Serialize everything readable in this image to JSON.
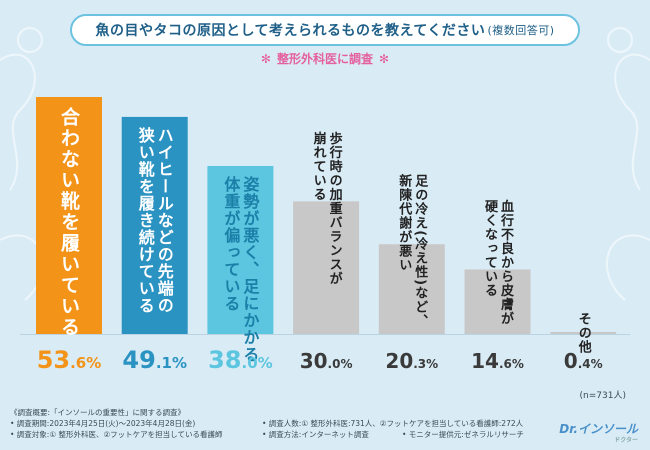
{
  "header": {
    "title": "魚の目やタコの原因として考えられるものを教えてください",
    "title_suffix": "(複数回答可)",
    "subtitle": "整形外科医に調査",
    "subtitle_star": "✻"
  },
  "chart_data": {
    "type": "bar",
    "title": "魚の目やタコの原因として考えられるものを教えてください(複数回答可)",
    "categories": [
      "合わない靴を履いている",
      "ハイヒールなどの先端の狭い靴を履き続けている",
      "姿勢が悪く、足にかかる体重が偏っている",
      "歩行時の加重バランスが崩れている",
      "足の冷え(冷え性)など、新陳代謝が悪い",
      "血行不良から皮膚が硬くなっている",
      "その他"
    ],
    "category_lines": [
      [
        "合わない靴を履いている"
      ],
      [
        "ハイヒールなどの先端の",
        "狭い靴を履き続けている"
      ],
      [
        "姿勢が悪く、足にかかる",
        "体重が偏っている"
      ],
      [
        "歩行時の加重バランスが",
        "崩れている"
      ],
      [
        "足の冷え(冷え性)など、",
        "新陳代謝が悪い"
      ],
      [
        "血行不良から皮膚が",
        "硬くなっている"
      ],
      [
        "その他"
      ]
    ],
    "values": [
      53.6,
      49.1,
      38.0,
      30.0,
      20.3,
      14.6,
      0.4
    ],
    "value_labels": [
      {
        "main": "53",
        "dec": ".6%"
      },
      {
        "main": "49",
        "dec": ".1%"
      },
      {
        "main": "38",
        "dec": ".0%"
      },
      {
        "main": "30",
        "dec": ".0%"
      },
      {
        "main": "20",
        "dec": ".3%"
      },
      {
        "main": "14",
        "dec": ".6%"
      },
      {
        "main": "0",
        "dec": ".4%"
      }
    ],
    "ylim": [
      0,
      53.6
    ],
    "colors": [
      "#f39318",
      "#2b93c2",
      "#5cc6e0",
      "#c8c8c8",
      "#c8c8c8",
      "#c8c8c8",
      "#c8c8c8"
    ],
    "label_colors": [
      "#f39318",
      "#2b93c2",
      "#5cc6e0",
      "#3a3a3a",
      "#3a3a3a",
      "#3a3a3a",
      "#3a3a3a"
    ],
    "text_colors": [
      "#ffffff",
      "#ffffff",
      "#1b7fa8",
      "#222222",
      "#222222",
      "#222222",
      "#222222"
    ],
    "xlabel": "",
    "ylabel": ""
  },
  "note": {
    "n": "(n=731人)"
  },
  "footer": {
    "survey_title": "《調査概要:「インソールの重要性」に関する調査》",
    "period": "• 調査期間:2023年4月25日(火)〜2023年4月28日(金)",
    "target": "• 調査対象:① 整形外科医、②フットケアを担当している看護師",
    "count": "• 調査人数:① 整形外科医:731人、②フットケアを担当している看護師:272人",
    "method": "• 調査方法:インターネット調査",
    "monitor": "• モニター提供元:ゼネラルリサーチ"
  },
  "brand": {
    "name": "Dr.インソール",
    "sub": "ドクター"
  }
}
